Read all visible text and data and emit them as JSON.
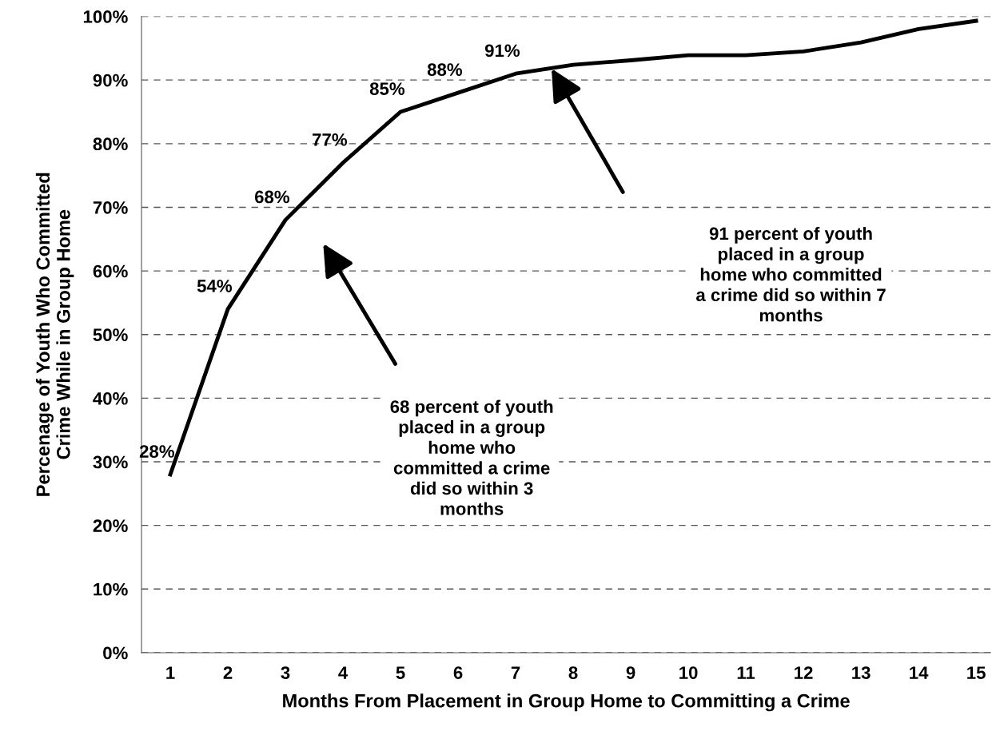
{
  "chart_data": {
    "type": "line",
    "xlabel": "Months From Placement in Group Home to Committing a Crime",
    "ylabel": "Percenage of Youth Who Committed\nCrime While in Group Home",
    "categories": [
      "1",
      "2",
      "3",
      "4",
      "5",
      "6",
      "7",
      "8",
      "9",
      "10",
      "11",
      "12",
      "13",
      "14",
      "15"
    ],
    "series": [
      {
        "color": "#000000",
        "values": [
          28,
          54,
          68,
          77,
          85,
          88,
          91,
          92.4,
          93.1,
          93.9,
          93.9,
          94.5,
          95.9,
          98,
          99.3
        ],
        "value_labels": [
          "28%",
          "54%",
          "68%",
          "77%",
          "85%",
          "88%",
          "91%",
          null,
          null,
          null,
          null,
          null,
          null,
          null,
          null
        ]
      }
    ],
    "ylim": [
      0,
      100
    ],
    "yticks": [
      {
        "value": 0,
        "label": "0%"
      },
      {
        "value": 10,
        "label": "10%"
      },
      {
        "value": 20,
        "label": "20%"
      },
      {
        "value": 30,
        "label": "30%"
      },
      {
        "value": 40,
        "label": "40%"
      },
      {
        "value": 50,
        "label": "50%"
      },
      {
        "value": 60,
        "label": "60%"
      },
      {
        "value": 70,
        "label": "70%"
      },
      {
        "value": 80,
        "label": "80%"
      },
      {
        "value": 90,
        "label": "90%"
      },
      {
        "value": 100,
        "label": "100%"
      }
    ],
    "grid": "y",
    "legend": false,
    "marker": "none",
    "line_style": "solid",
    "annotations": [
      "68 percent of youth\nplaced in a group\nhome who\ncommitted a crime\ndid so within 3\nmonths",
      "91 percent of youth\nplaced in a group\nhome who committed\na crime did so within 7\nmonths"
    ]
  }
}
